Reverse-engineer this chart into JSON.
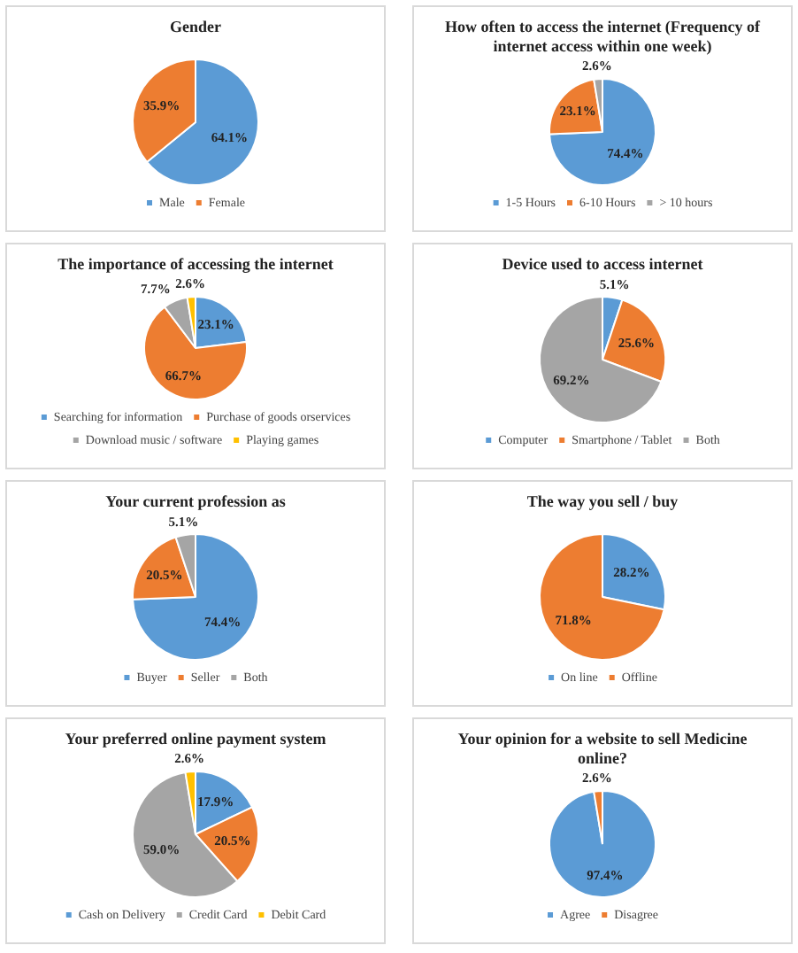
{
  "chart_data": [
    {
      "type": "pie",
      "title": "Gender",
      "categories": [
        "Male",
        "Female"
      ],
      "values": [
        64.1,
        35.9
      ],
      "colors": [
        "#5b9bd5",
        "#ed7d31"
      ],
      "value_labels": [
        "64.1%",
        "35.9%"
      ],
      "legend": "bottom"
    },
    {
      "type": "pie",
      "title": "How often to access the internet  (Frequency of internet  access within one week)",
      "categories": [
        "1-5 Hours",
        "6-10 Hours",
        "> 10 hours"
      ],
      "values": [
        74.4,
        23.1,
        2.6
      ],
      "colors": [
        "#5b9bd5",
        "#ed7d31",
        "#a5a5a5"
      ],
      "value_labels": [
        "74.4%",
        "23.1%",
        "2.6%"
      ],
      "legend": "bottom"
    },
    {
      "type": "pie",
      "title": "The importance of accessing the internet",
      "categories": [
        "Searching for information",
        "Purchase of goods orservices",
        "Download music / software",
        "Playing games"
      ],
      "values": [
        23.1,
        66.7,
        7.7,
        2.6
      ],
      "colors": [
        "#5b9bd5",
        "#ed7d31",
        "#a5a5a5",
        "#ffc000"
      ],
      "value_labels": [
        "23.1%",
        "66.7%",
        "7.7%",
        "2.6%"
      ],
      "legend": "bottom"
    },
    {
      "type": "pie",
      "title": "Device used to access internet",
      "categories": [
        "Computer",
        "Smartphone / Tablet",
        "Both"
      ],
      "values": [
        5.1,
        25.6,
        69.2
      ],
      "colors": [
        "#5b9bd5",
        "#ed7d31",
        "#a5a5a5"
      ],
      "value_labels": [
        "5.1%",
        "25.6%",
        "69.2%"
      ],
      "legend": "bottom"
    },
    {
      "type": "pie",
      "title": "Your current profession as",
      "categories": [
        "Buyer",
        "Seller",
        "Both"
      ],
      "values": [
        74.4,
        20.5,
        5.1
      ],
      "colors": [
        "#5b9bd5",
        "#ed7d31",
        "#a5a5a5"
      ],
      "value_labels": [
        "74.4%",
        "20.5%",
        "5.1%"
      ],
      "legend": "bottom"
    },
    {
      "type": "pie",
      "title": "The way you sell / buy",
      "categories": [
        "On line",
        "Offline"
      ],
      "values": [
        28.2,
        71.8
      ],
      "colors": [
        "#5b9bd5",
        "#ed7d31"
      ],
      "value_labels": [
        "28.2%",
        "71.8%"
      ],
      "legend": "bottom"
    },
    {
      "type": "pie",
      "title": "Your preferred online payment system",
      "categories": [
        "Cash on Delivery",
        null,
        "Credit Card",
        "Debit Card"
      ],
      "values": [
        17.9,
        20.5,
        59.0,
        2.6
      ],
      "colors": [
        "#5b9bd5",
        "#ed7d31",
        "#a5a5a5",
        "#ffc000"
      ],
      "value_labels": [
        "17.9%",
        "20.5%",
        "59.0%",
        "2.6%"
      ],
      "legend": "bottom"
    },
    {
      "type": "pie",
      "title": "Your opinion  for a website to sell  Medicine online?",
      "categories": [
        "Agree",
        "Disagree"
      ],
      "values": [
        97.4,
        2.6
      ],
      "colors": [
        "#5b9bd5",
        "#ed7d31"
      ],
      "value_labels": [
        "97.4%",
        "2.6%"
      ],
      "legend": "bottom"
    }
  ]
}
